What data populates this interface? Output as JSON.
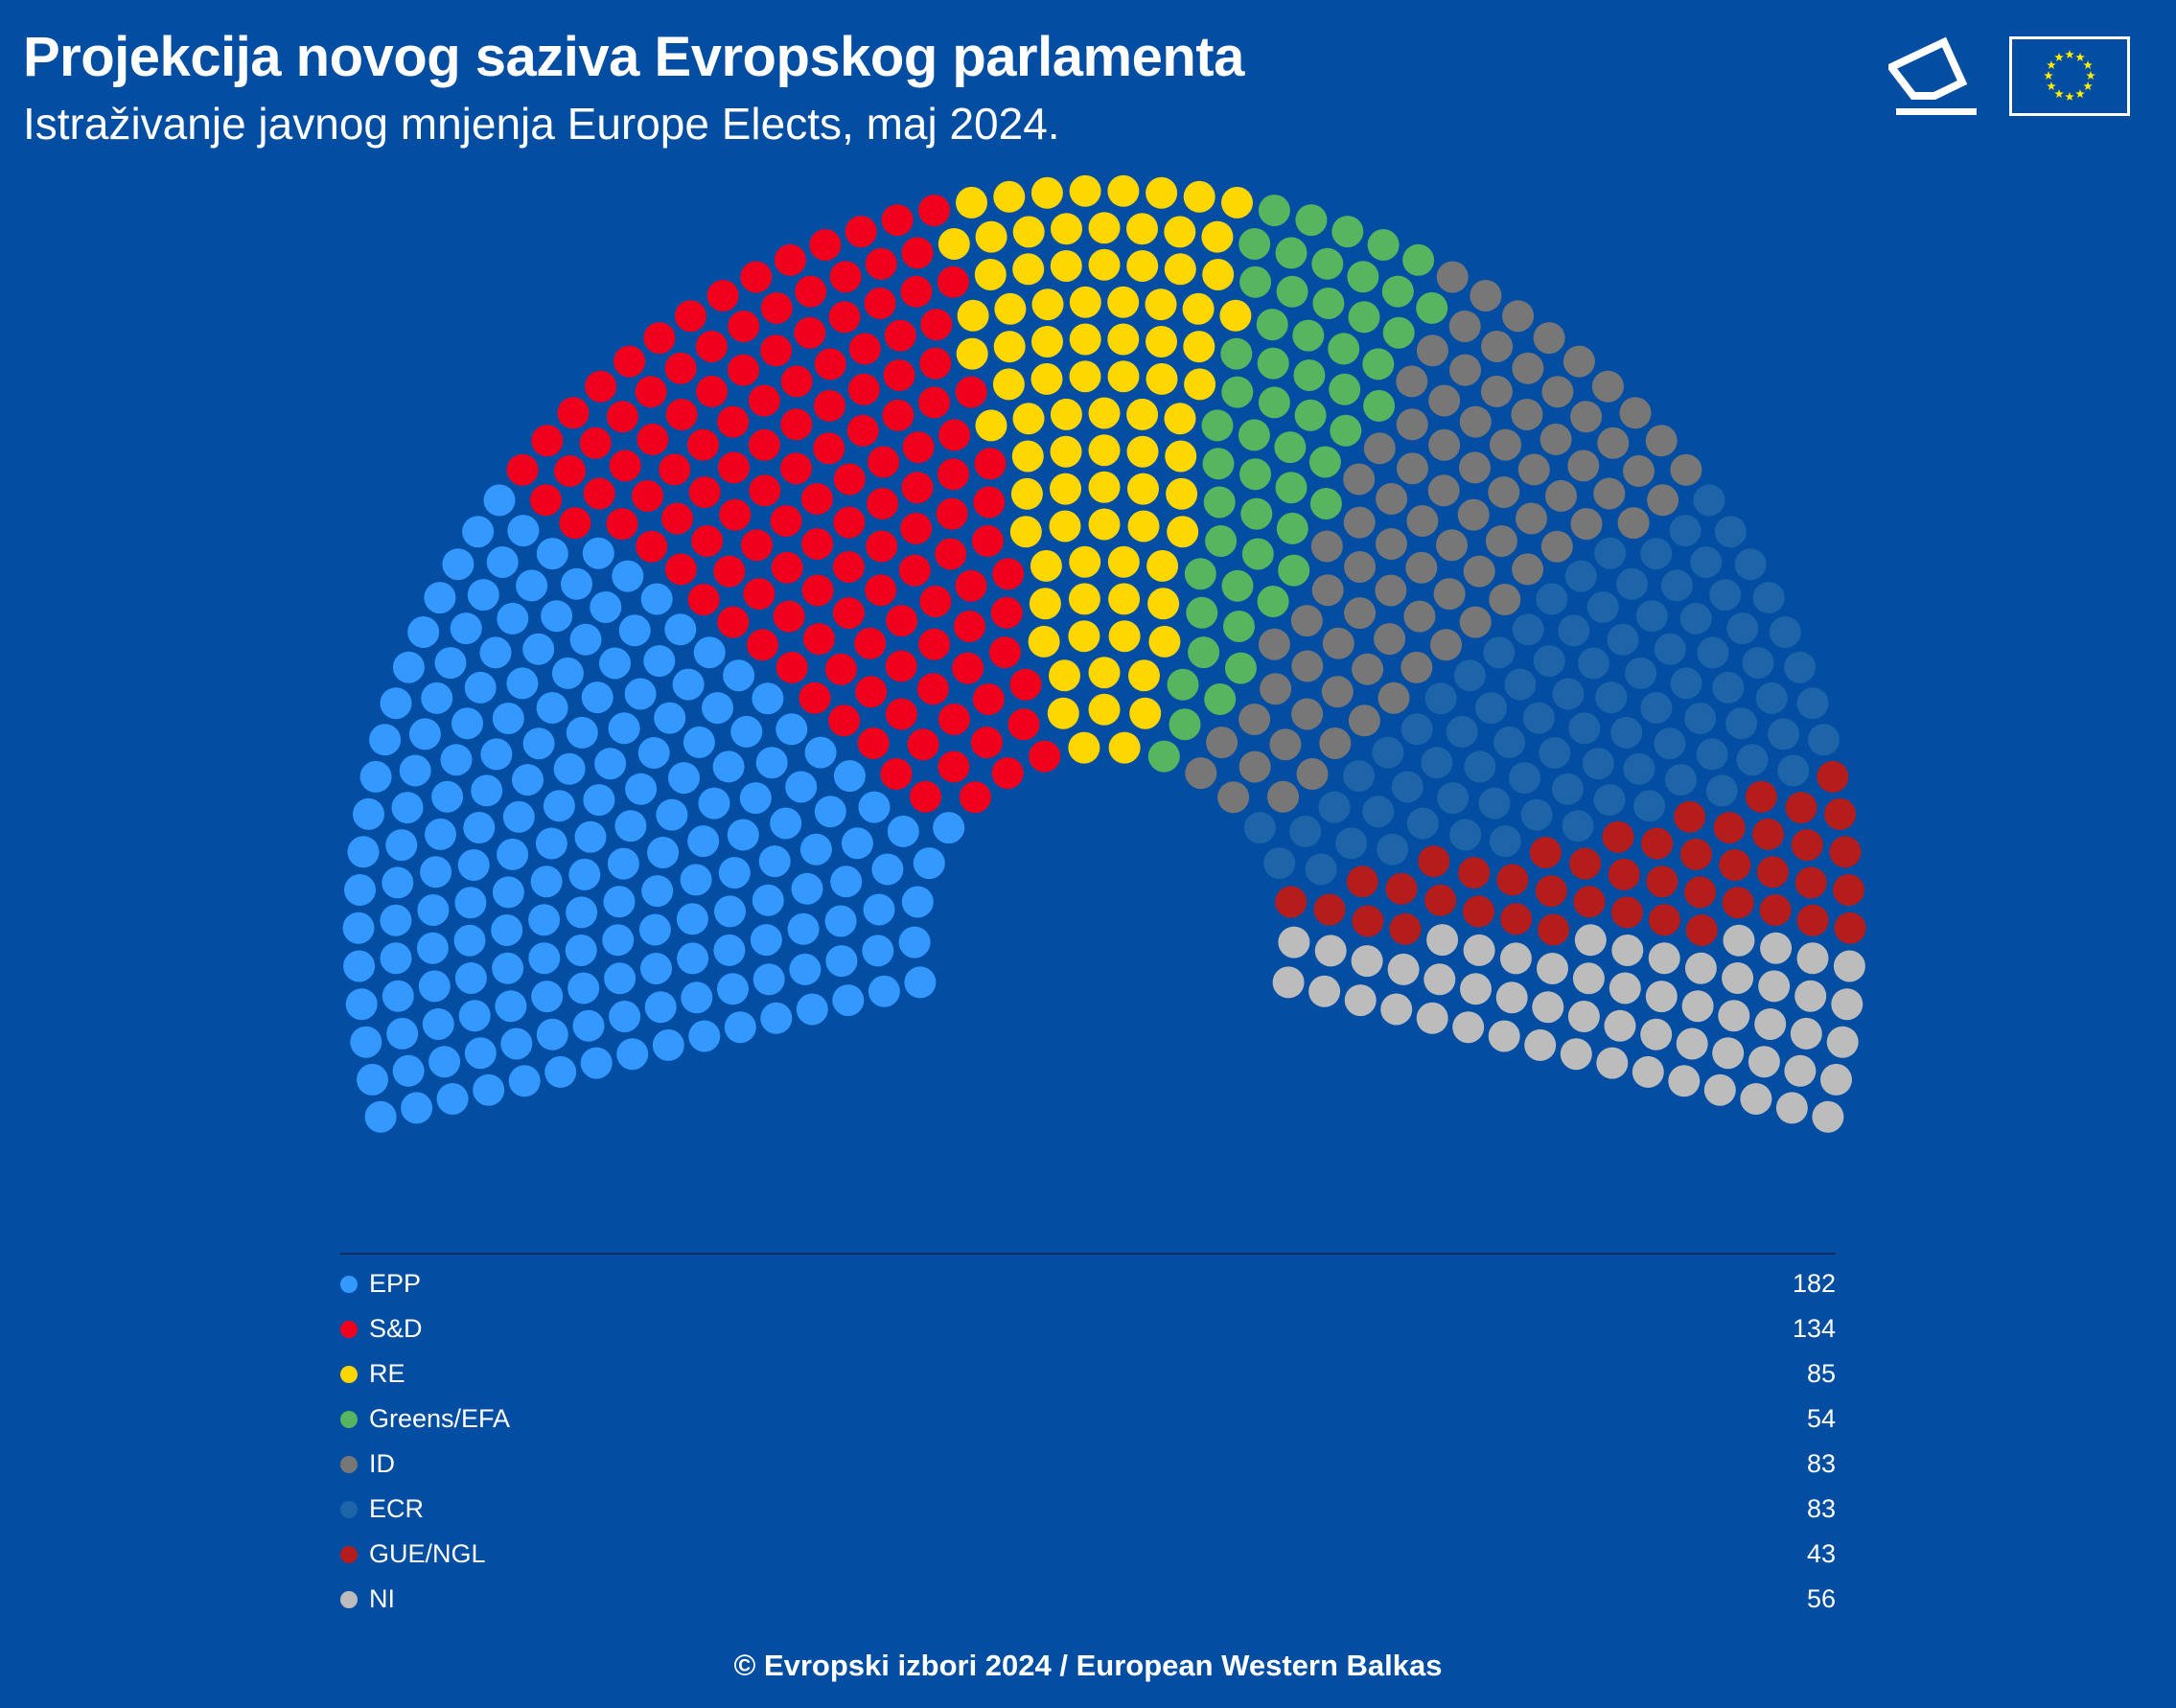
{
  "header": {
    "title": "Projekcija novog saziva Evropskog parlamenta",
    "subtitle": "Istraživanje javnog mnjenja Europe Elects, maj 2024."
  },
  "icons": {
    "ballot": "ballot-box-icon",
    "flag": "eu-flag-icon"
  },
  "chart_data": {
    "type": "parliament",
    "title": "Projekcija novog saziva Evropskog parlamenta",
    "total_seats": 720,
    "parties": [
      {
        "name": "EPP",
        "seats": 182,
        "color": "#3399ff"
      },
      {
        "name": "S&D",
        "seats": 134,
        "color": "#f0001c"
      },
      {
        "name": "RE",
        "seats": 85,
        "color": "#ffd700"
      },
      {
        "name": "Greens/EFA",
        "seats": 54,
        "color": "#57b45f"
      },
      {
        "name": "ID",
        "seats": 83,
        "color": "#777777"
      },
      {
        "name": "ECR",
        "seats": 83,
        "color": "#1d64a8"
      },
      {
        "name": "GUE/NGL",
        "seats": 43,
        "color": "#b51c1c"
      },
      {
        "name": "NI",
        "seats": 56,
        "color": "#bcbcbc"
      }
    ],
    "legend_placement": "bottom"
  },
  "footer": "© Evropski izbori 2024 / European Western Balkas"
}
